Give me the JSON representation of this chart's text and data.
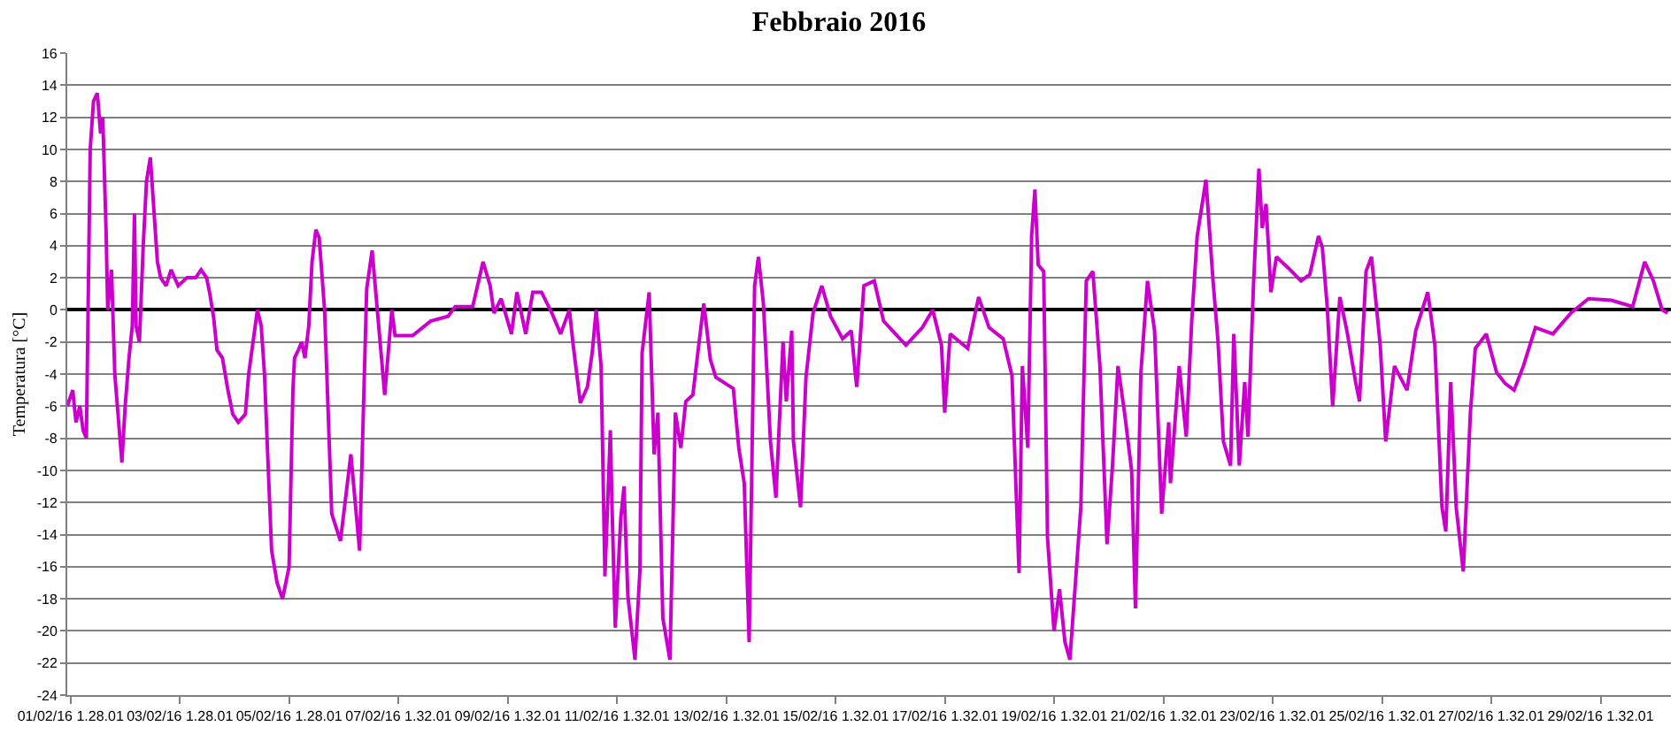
{
  "chart_data": {
    "type": "line",
    "title": "Febbraio 2016",
    "ylabel": "Temperatura [°C]",
    "xlim": [
      "2016-02-01T00:00",
      "2016-03-01T08:24"
    ],
    "ylim": [
      -24,
      16
    ],
    "yticks": [
      -24,
      -22,
      -20,
      -18,
      -16,
      -14,
      -12,
      -10,
      -8,
      -6,
      -4,
      -2,
      0,
      2,
      4,
      6,
      8,
      10,
      12,
      14,
      16
    ],
    "xticks": [
      {
        "value": "2016-02-01T01:28",
        "label": "01/02/16 1.28.01"
      },
      {
        "value": "2016-02-03T01:28",
        "label": "03/02/16 1.28.01"
      },
      {
        "value": "2016-02-05T01:28",
        "label": "05/02/16 1.28.01"
      },
      {
        "value": "2016-02-07T01:32",
        "label": "07/02/16 1.32.01"
      },
      {
        "value": "2016-02-09T01:32",
        "label": "09/02/16 1.32.01"
      },
      {
        "value": "2016-02-11T01:32",
        "label": "11/02/16 1.32.01"
      },
      {
        "value": "2016-02-13T01:32",
        "label": "13/02/16 1.32.01"
      },
      {
        "value": "2016-02-15T01:32",
        "label": "15/02/16 1.32.01"
      },
      {
        "value": "2016-02-17T01:32",
        "label": "17/02/16 1.32.01"
      },
      {
        "value": "2016-02-19T01:32",
        "label": "19/02/16 1.32.01"
      },
      {
        "value": "2016-02-21T01:32",
        "label": "21/02/16 1.32.01"
      },
      {
        "value": "2016-02-23T01:32",
        "label": "23/02/16 1.32.01"
      },
      {
        "value": "2016-02-25T01:32",
        "label": "25/02/16 1.32.01"
      },
      {
        "value": "2016-02-27T01:32",
        "label": "27/02/16 1.32.01"
      },
      {
        "value": "2016-02-29T01:32",
        "label": "29/02/16 1.32.01"
      }
    ],
    "grid": "y",
    "marker": "none",
    "line_style": "solid",
    "x": [
      "2016-02-01T00:00",
      "2016-02-01T02:24",
      "2016-02-01T03:50",
      "2016-02-01T05:31",
      "2016-02-01T06:58",
      "2016-02-01T08:24",
      "2016-02-01T10:05",
      "2016-02-01T11:31",
      "2016-02-01T13:12",
      "2016-02-01T14:38",
      "2016-02-01T15:36",
      "2016-02-01T17:02",
      "2016-02-01T17:46",
      "2016-02-01T19:26",
      "2016-02-01T20:53",
      "2016-02-01T22:34",
      "2016-02-02T00:00",
      "2016-02-02T01:26",
      "2016-02-02T03:07",
      "2016-02-02T04:34",
      "2016-02-02T05:31",
      "2016-02-02T06:14",
      "2016-02-02T07:41",
      "2016-02-02T09:22",
      "2016-02-02T10:48",
      "2016-02-02T12:29",
      "2016-02-02T13:12",
      "2016-02-02T14:38",
      "2016-02-02T15:36",
      "2016-02-02T17:02",
      "2016-02-02T19:26",
      "2016-02-02T21:36",
      "2016-02-03T00:43",
      "2016-02-03T04:34",
      "2016-02-03T08:24",
      "2016-02-03T10:48",
      "2016-02-03T13:12",
      "2016-02-03T14:38",
      "2016-02-03T16:19",
      "2016-02-03T17:46",
      "2016-02-03T20:10",
      "2016-02-03T22:34",
      "2016-02-04T00:43",
      "2016-02-04T03:07",
      "2016-02-04T06:14",
      "2016-02-04T07:41",
      "2016-02-04T10:05",
      "2016-02-04T11:31",
      "2016-02-04T13:12",
      "2016-02-04T14:38",
      "2016-02-04T16:19",
      "2016-02-04T17:46",
      "2016-02-04T20:10",
      "2016-02-04T22:34",
      "2016-02-05T00:43",
      "2016-02-05T01:26",
      "2016-02-05T03:07",
      "2016-02-05T03:50",
      "2016-02-05T05:31",
      "2016-02-05T06:58",
      "2016-02-05T08:24",
      "2016-02-05T10:05",
      "2016-02-05T11:31",
      "2016-02-05T13:12",
      "2016-02-05T14:38",
      "2016-02-05T17:02",
      "2016-02-05T20:10",
      "2016-02-06T00:00",
      "2016-02-06T04:34",
      "2016-02-06T08:24",
      "2016-02-06T11:31",
      "2016-02-06T13:55",
      "2016-02-06T19:26",
      "2016-02-06T22:34",
      "2016-02-07T00:00",
      "2016-02-07T07:41",
      "2016-02-07T15:36",
      "2016-02-07T23:17",
      "2016-02-08T02:24",
      "2016-02-08T10:05",
      "2016-02-08T14:38",
      "2016-02-08T17:46",
      "2016-02-08T19:26",
      "2016-02-08T22:34",
      "2016-02-09T03:07",
      "2016-02-09T05:31",
      "2016-02-09T09:22",
      "2016-02-09T12:29",
      "2016-02-09T16:19",
      "2016-02-09T20:53",
      "2016-02-10T00:43",
      "2016-02-10T04:34",
      "2016-02-10T06:14",
      "2016-02-10T09:22",
      "2016-02-10T12:29",
      "2016-02-10T14:38",
      "2016-02-10T16:19",
      "2016-02-10T18:29",
      "2016-02-10T20:10",
      "2016-02-10T22:34",
      "2016-02-10T23:17",
      "2016-02-11T00:43",
      "2016-02-11T03:07",
      "2016-02-11T04:34",
      "2016-02-11T06:14",
      "2016-02-11T09:22",
      "2016-02-11T11:31",
      "2016-02-11T12:29",
      "2016-02-11T15:36",
      "2016-02-11T17:46",
      "2016-02-11T19:26",
      "2016-02-11T21:36",
      "2016-02-12T00:43",
      "2016-02-12T03:07",
      "2016-02-12T05:31",
      "2016-02-12T07:41",
      "2016-02-12T10:48",
      "2016-02-12T13:12",
      "2016-02-12T15:36",
      "2016-02-12T18:29",
      "2016-02-12T20:53",
      "2016-02-13T04:34",
      "2016-02-13T06:58",
      "2016-02-13T09:22",
      "2016-02-13T11:31",
      "2016-02-13T13:55",
      "2016-02-13T15:36",
      "2016-02-13T17:46",
      "2016-02-13T20:53",
      "2016-02-13T23:17",
      "2016-02-14T02:24",
      "2016-02-14T03:50",
      "2016-02-14T06:14",
      "2016-02-14T06:58",
      "2016-02-14T10:05",
      "2016-02-14T12:29",
      "2016-02-14T15:36",
      "2016-02-14T19:26",
      "2016-02-14T23:17",
      "2016-02-15T04:34",
      "2016-02-15T08:24",
      "2016-02-15T10:05",
      "2016-02-15T10:48",
      "2016-02-15T13:55",
      "2016-02-15T18:29",
      "2016-02-15T22:34",
      "2016-02-16T08:24",
      "2016-02-16T15:36",
      "2016-02-16T20:10",
      "2016-02-17T00:00",
      "2016-02-17T01:26",
      "2016-02-17T03:50",
      "2016-02-17T11:31",
      "2016-02-17T16:19",
      "2016-02-17T20:53",
      "2016-02-18T03:07",
      "2016-02-18T06:58",
      "2016-02-18T10:05",
      "2016-02-18T11:31",
      "2016-02-18T13:55",
      "2016-02-18T15:36",
      "2016-02-18T17:02",
      "2016-02-18T18:29",
      "2016-02-18T20:53",
      "2016-02-18T22:34",
      "2016-02-19T01:26",
      "2016-02-19T03:50",
      "2016-02-19T06:14",
      "2016-02-19T08:24",
      "2016-02-19T13:12",
      "2016-02-19T15:36",
      "2016-02-19T18:29",
      "2016-02-19T21:36",
      "2016-02-20T00:43",
      "2016-02-20T03:07",
      "2016-02-20T05:31",
      "2016-02-20T08:24",
      "2016-02-20T11:31",
      "2016-02-20T13:12",
      "2016-02-20T15:36",
      "2016-02-20T18:29",
      "2016-02-20T21:36",
      "2016-02-21T00:43",
      "2016-02-21T03:50",
      "2016-02-21T04:34",
      "2016-02-21T08:24",
      "2016-02-21T11:31",
      "2016-02-21T13:55",
      "2016-02-21T16:19",
      "2016-02-21T20:10",
      "2016-02-21T23:17",
      "2016-02-22T01:26",
      "2016-02-22T03:50",
      "2016-02-22T06:58",
      "2016-02-22T08:24",
      "2016-02-22T10:48",
      "2016-02-22T13:12",
      "2016-02-22T14:38",
      "2016-02-22T17:02",
      "2016-02-22T19:26",
      "2016-02-22T20:53",
      "2016-02-22T22:34",
      "2016-02-23T00:43",
      "2016-02-23T03:07",
      "2016-02-23T08:24",
      "2016-02-23T13:55",
      "2016-02-23T17:46",
      "2016-02-23T21:36",
      "2016-02-23T23:17",
      "2016-02-24T01:26",
      "2016-02-24T03:50",
      "2016-02-24T06:58",
      "2016-02-24T10:05",
      "2016-02-24T13:55",
      "2016-02-24T15:36",
      "2016-02-24T18:29",
      "2016-02-24T20:53",
      "2016-02-25T00:43",
      "2016-02-25T03:07",
      "2016-02-25T06:58",
      "2016-02-25T12:29",
      "2016-02-25T16:19",
      "2016-02-25T21:36",
      "2016-02-26T00:43",
      "2016-02-26T03:50",
      "2016-02-26T05:31",
      "2016-02-26T07:41",
      "2016-02-26T10:05",
      "2016-02-26T13:12",
      "2016-02-26T16:19",
      "2016-02-26T18:29",
      "2016-02-26T23:17",
      "2016-02-27T03:50",
      "2016-02-27T07:41",
      "2016-02-27T11:31",
      "2016-02-27T15:36",
      "2016-02-27T20:53",
      "2016-02-28T04:34",
      "2016-02-28T12:29",
      "2016-02-28T20:10",
      "2016-02-29T06:14",
      "2016-02-29T15:36",
      "2016-02-29T20:53",
      "2016-03-01T00:43",
      "2016-03-01T04:34",
      "2016-03-01T06:58"
    ],
    "series": [
      {
        "color": "#cc00cc",
        "values": [
          -6,
          -5,
          -7,
          -6,
          -7.5,
          -8,
          10,
          13,
          13.5,
          11,
          12,
          5,
          0,
          2.5,
          -4,
          -7,
          -9.5,
          -6,
          -3,
          -1,
          6,
          -1,
          -2,
          4,
          8,
          9.5,
          8,
          5,
          3,
          2,
          1.5,
          2.5,
          1.5,
          2,
          2,
          2.5,
          2,
          1,
          -0.5,
          -2.5,
          -3,
          -5,
          -6.5,
          -7,
          -6.5,
          -4,
          -1.5,
          0,
          -1,
          -4,
          -10,
          -15,
          -17,
          -18,
          -16.5,
          -16,
          -5,
          -3,
          -2.5,
          -2,
          -3,
          -1,
          3,
          5,
          4.5,
          0,
          -12.7,
          -14.4,
          -9,
          -15,
          1.3,
          3.7,
          -5.3,
          0,
          -1.6,
          -1.6,
          -0.7,
          -0.4,
          0.2,
          0.2,
          3,
          1.5,
          -0.2,
          0.7,
          -1.5,
          1.1,
          -1.5,
          1.1,
          1.1,
          -0.2,
          -1.5,
          0,
          -2.2,
          -5.8,
          -4.8,
          -2.6,
          0,
          -3.5,
          -16.6,
          -7.5,
          -12.3,
          -19.8,
          -13,
          -11,
          -17.8,
          -21.8,
          -16.3,
          -2.7,
          1.1,
          -9,
          -6.4,
          -19.2,
          -21.8,
          -6.4,
          -8.6,
          -5.7,
          -5.3,
          -2.4,
          0.4,
          -3.1,
          -4.2,
          -4.9,
          -8.6,
          -10.8,
          -20.7,
          1.5,
          3.3,
          0.4,
          -8.2,
          -11.7,
          -2,
          -5.7,
          -1.3,
          -8.2,
          -12.3,
          -4.2,
          -0.2,
          1.5,
          -0.4,
          -1.8,
          -1.3,
          -3.9,
          -4.8,
          1.5,
          1.8,
          -0.7,
          -2.2,
          -1.1,
          0,
          -2.2,
          -6.4,
          -1.5,
          -2.4,
          0.8,
          -1.1,
          -1.8,
          -4.1,
          -16.4,
          -3.5,
          -8.6,
          4.6,
          7.5,
          2.8,
          2.4,
          -14.2,
          -20,
          -17.4,
          -20.7,
          -21.8,
          -12.3,
          1.8,
          2.4,
          -3.5,
          -14.6,
          -9.7,
          -3.5,
          -6.4,
          -10,
          -18.6,
          -3.9,
          1.8,
          -1.3,
          -12.7,
          -7,
          -10.8,
          -3.5,
          -7.9,
          -0.7,
          4.6,
          8.1,
          1.8,
          -1.9,
          -8.2,
          -9.7,
          -1.5,
          -9.7,
          -4.5,
          -7.9,
          1.5,
          8.8,
          5.1,
          6.6,
          1.1,
          3.3,
          2.6,
          1.8,
          2.2,
          4.6,
          3.9,
          0.2,
          -6,
          0.8,
          -1.3,
          -4.5,
          -5.7,
          2.4,
          3.3,
          -2.2,
          -8.2,
          -3.5,
          -5,
          -1.3,
          1.1,
          -2.2,
          -12.3,
          -13.8,
          -4.5,
          -12.3,
          -16.3,
          -6.4,
          -2.4,
          -1.5,
          -3.9,
          -4.6,
          -5,
          -3.5,
          -1.1,
          -1.5,
          -0.2,
          0.7,
          0.6,
          0.2,
          3,
          1.8,
          0,
          -0.2
        ]
      }
    ]
  }
}
